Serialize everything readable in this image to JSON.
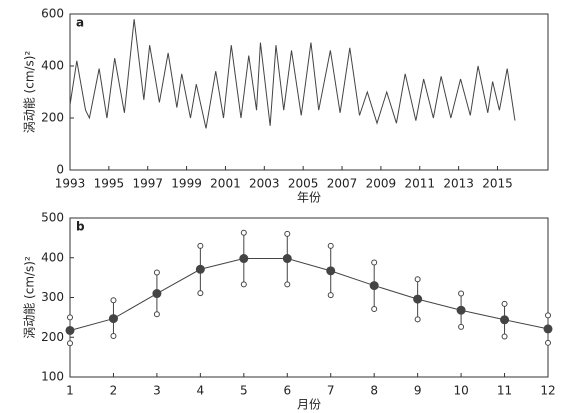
{
  "chart_data": [
    {
      "type": "line",
      "panel_label": "a",
      "xlabel": "年份",
      "ylabel": "涡动能 (cm/s)²",
      "color": "#444444",
      "x": [
        1993.0,
        1993.35,
        1993.8,
        1994.0,
        1994.5,
        1994.9,
        1995.3,
        1995.8,
        1996.3,
        1996.8,
        1997.1,
        1997.6,
        1998.05,
        1998.5,
        1998.75,
        1999.2,
        1999.5,
        2000.0,
        2000.5,
        2000.9,
        2001.3,
        2001.8,
        2002.2,
        2002.6,
        2002.8,
        2003.3,
        2003.6,
        2004.0,
        2004.4,
        2004.9,
        2005.4,
        2005.8,
        2006.4,
        2006.9,
        2007.4,
        2007.9,
        2008.3,
        2008.8,
        2009.3,
        2009.8,
        2010.25,
        2010.8,
        2011.2,
        2011.7,
        2012.1,
        2012.6,
        2013.1,
        2013.6,
        2014.0,
        2014.5,
        2014.75,
        2015.1,
        2015.5,
        2015.9
      ],
      "values": [
        250,
        420,
        230,
        200,
        390,
        200,
        430,
        220,
        580,
        270,
        480,
        260,
        450,
        240,
        370,
        200,
        330,
        160,
        380,
        200,
        480,
        200,
        440,
        230,
        490,
        170,
        480,
        230,
        460,
        210,
        490,
        230,
        460,
        220,
        470,
        210,
        300,
        180,
        300,
        180,
        370,
        190,
        350,
        200,
        360,
        200,
        350,
        210,
        400,
        220,
        340,
        230,
        390,
        190
      ],
      "xlim": [
        1993,
        2017.6
      ],
      "xticks": [
        1993,
        1995,
        1997,
        1999,
        2001,
        2003,
        2005,
        2007,
        2009,
        2011,
        2013,
        2015
      ],
      "ylim": [
        0,
        600
      ],
      "yticks": [
        0,
        200,
        400,
        600
      ]
    },
    {
      "type": "errorline",
      "panel_label": "b",
      "xlabel": "月份",
      "ylabel": "涡动能 (cm/s)²",
      "color": "#444444",
      "x": [
        1,
        2,
        3,
        4,
        5,
        6,
        7,
        8,
        9,
        10,
        11,
        12
      ],
      "values": [
        217,
        247,
        310,
        371,
        398,
        398,
        367,
        330,
        296,
        268,
        244,
        221
      ],
      "upper": [
        250,
        293,
        363,
        430,
        463,
        460,
        430,
        388,
        346,
        310,
        284,
        255
      ],
      "lower": [
        185,
        203,
        258,
        311,
        333,
        333,
        306,
        271,
        245,
        226,
        202,
        186
      ],
      "xlim": [
        1,
        12
      ],
      "xticks": [
        1,
        2,
        3,
        4,
        5,
        6,
        7,
        8,
        9,
        10,
        11,
        12
      ],
      "ylim": [
        100,
        500
      ],
      "yticks": [
        100,
        200,
        300,
        400,
        500
      ]
    }
  ]
}
